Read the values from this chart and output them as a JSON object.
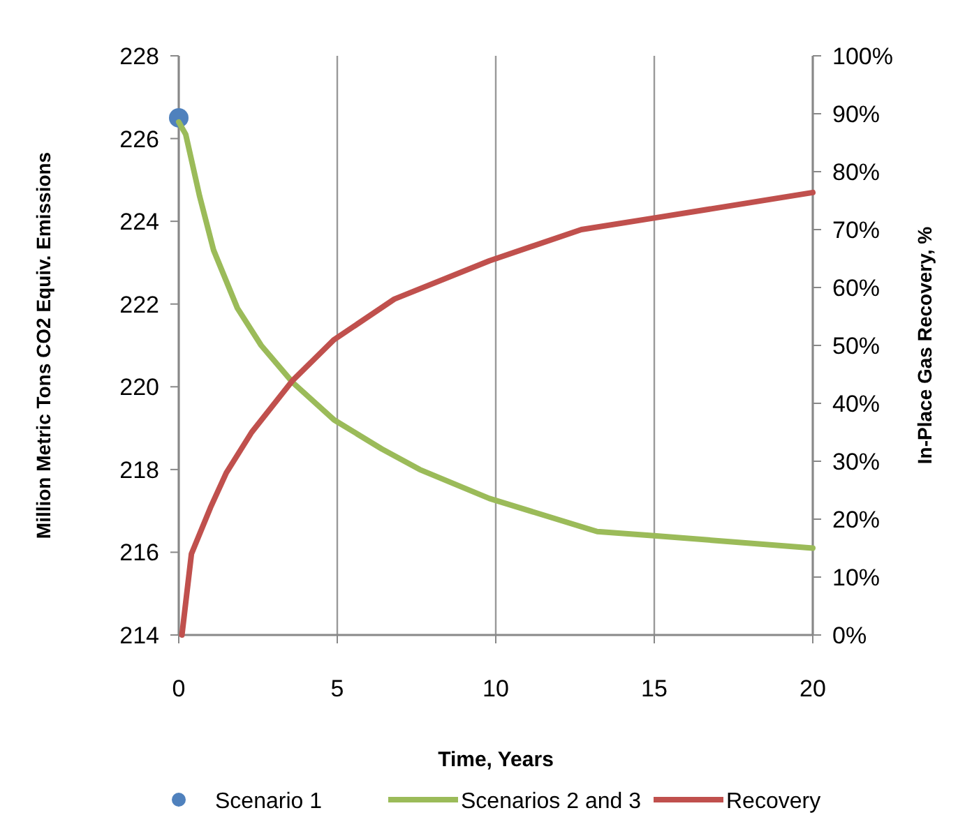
{
  "chart_data": {
    "type": "line",
    "xlabel": "Time, Years",
    "ylabel": "Million Metric Tons CO2 Equiv. Emissions",
    "y2label": "In-Place Gas Recovery, %",
    "xlim": [
      0,
      20
    ],
    "xticks": [
      0,
      5,
      10,
      15,
      20
    ],
    "ylim": [
      214,
      228
    ],
    "yticks": [
      214,
      216,
      218,
      220,
      222,
      224,
      226,
      228
    ],
    "y2lim": [
      0,
      100
    ],
    "y2ticks": [
      {
        "value": 0,
        "label": "0%"
      },
      {
        "value": 10,
        "label": "10%"
      },
      {
        "value": 20,
        "label": "20%"
      },
      {
        "value": 30,
        "label": "30%"
      },
      {
        "value": 40,
        "label": "40%"
      },
      {
        "value": 50,
        "label": "50%"
      },
      {
        "value": 60,
        "label": "60%"
      },
      {
        "value": 70,
        "label": "70%"
      },
      {
        "value": 80,
        "label": "80%"
      },
      {
        "value": 90,
        "label": "90%"
      },
      {
        "value": 100,
        "label": "100%"
      }
    ],
    "grid": "x",
    "legend": "bottom",
    "series": [
      {
        "name": "Scenario 1",
        "type": "scatter",
        "marker": "circle",
        "color": "#4f81bd",
        "x": [
          0
        ],
        "values": [
          226.5
        ]
      },
      {
        "name": "Scenarios 2 and 3",
        "color": "#9bbb59",
        "x": [
          0,
          0.22,
          0.66,
          1.1,
          1.85,
          2.6,
          3.6,
          4.9,
          6.4,
          7.6,
          9.8,
          13.2,
          15,
          20
        ],
        "values": [
          226.4,
          226.1,
          224.6,
          223.3,
          221.9,
          221,
          220.1,
          219.2,
          218.5,
          218,
          217.3,
          216.5,
          216.4,
          216.1
        ]
      },
      {
        "name": "Recovery",
        "axis": "y2",
        "color": "#c0504d",
        "x": [
          0.1,
          0.4,
          1,
          1.5,
          2.3,
          3.6,
          4.9,
          6.8,
          9.8,
          12.7,
          15,
          20
        ],
        "values": [
          0,
          14,
          22,
          28,
          35,
          44,
          51,
          58,
          64.6,
          70,
          72,
          76.4
        ]
      }
    ]
  }
}
